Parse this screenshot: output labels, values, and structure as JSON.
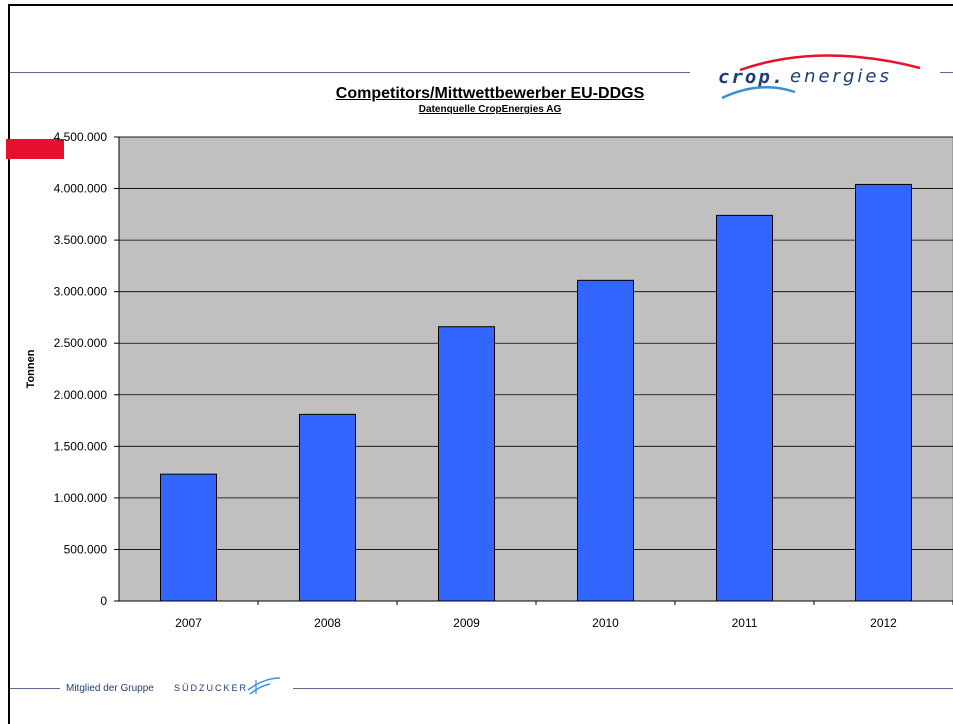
{
  "chart_data": {
    "type": "bar",
    "title": "Competitors/Mittwettbewerber  EU-DDGS",
    "subtitle": "Datenquelle CropEnergies AG",
    "xlabel": "",
    "ylabel": "Tonnen",
    "categories": [
      "2007",
      "2008",
      "2009",
      "2010",
      "2011",
      "2012"
    ],
    "values": [
      1230000,
      1810000,
      2660000,
      3110000,
      3740000,
      4040000
    ],
    "ylim": [
      0,
      4500000
    ],
    "yticks": [
      "0",
      "500.000",
      "1.000.000",
      "1.500.000",
      "2.000.000",
      "2.500.000",
      "3.000.000",
      "3.500.000",
      "4.000.000",
      "4.500.000"
    ],
    "grid": true,
    "legend": "none",
    "colors": {
      "bar": "#3366ff",
      "plot_background": "#c0c0c0"
    }
  },
  "logo": {
    "part1": "crop.",
    "part2": "energies"
  },
  "footer": {
    "label": "Mitglied der Gruppe",
    "brand": "SÜDZUCKER"
  },
  "colors": {
    "accent_red": "#e8112d",
    "rule_blue": "#5a6b8c",
    "logo_blue": "#1c3f74"
  }
}
